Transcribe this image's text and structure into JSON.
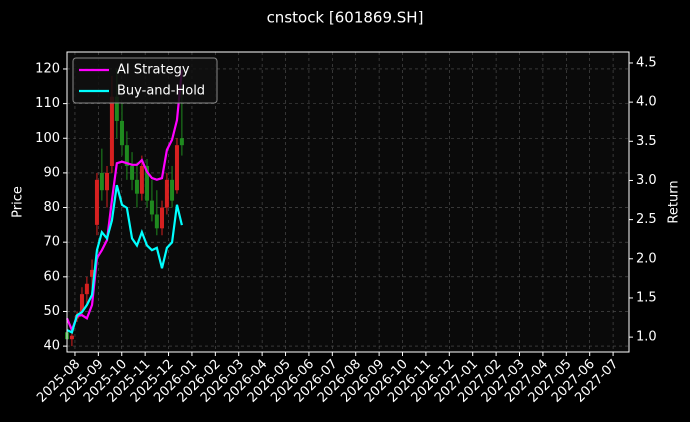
{
  "chart_data": {
    "type": "candlestick",
    "title": "cnstock [601869.SH]",
    "ylabel": "Price",
    "y2label": "Return",
    "x": [
      -0.34,
      -0.13,
      0.09,
      0.3,
      0.51,
      0.73,
      0.94,
      1.15,
      1.37,
      1.58,
      1.79,
      2.01,
      2.22,
      2.44,
      2.65,
      2.86,
      3.08,
      3.29,
      3.5,
      3.72,
      3.93,
      4.15,
      4.36,
      4.57
    ],
    "open": [
      44,
      42,
      48,
      50,
      55,
      60,
      75,
      90,
      85,
      92,
      112,
      105,
      98,
      92,
      88,
      84,
      92,
      82,
      78,
      74,
      80,
      88,
      85,
      100
    ],
    "high": [
      45,
      44,
      50,
      57,
      60,
      65,
      90,
      97,
      92,
      118,
      120,
      110,
      102,
      96,
      93,
      95,
      94,
      88,
      85,
      82,
      90,
      92,
      100,
      115
    ],
    "low": [
      41,
      40,
      47,
      49,
      52,
      56,
      72,
      82,
      80,
      90,
      100,
      95,
      88,
      85,
      80,
      82,
      80,
      76,
      72,
      72,
      78,
      80,
      84,
      95
    ],
    "close": [
      42,
      43,
      49,
      55,
      58,
      62,
      88,
      85,
      90,
      112,
      105,
      98,
      92,
      88,
      84,
      92,
      82,
      78,
      74,
      80,
      88,
      82,
      98,
      98
    ],
    "up_color": "#d62020",
    "down_color": "#1f8a1f",
    "series": [
      {
        "name": "AI Strategy",
        "color": "#ff00ff",
        "axis": "y2",
        "values": [
          1.24,
          1.09,
          1.27,
          1.28,
          1.24,
          1.41,
          2.01,
          2.11,
          2.24,
          2.75,
          3.22,
          3.24,
          3.22,
          3.2,
          3.2,
          3.26,
          3.11,
          3.03,
          3.01,
          3.03,
          3.39,
          3.52,
          3.77,
          4.41
        ]
      },
      {
        "name": "Buy-and-Hold",
        "color": "#00ffff",
        "axis": "y2",
        "values": [
          1.09,
          1.06,
          1.28,
          1.32,
          1.41,
          1.54,
          2.11,
          2.34,
          2.26,
          2.49,
          2.94,
          2.69,
          2.65,
          2.26,
          2.17,
          2.34,
          2.17,
          2.11,
          2.14,
          1.88,
          2.14,
          2.21,
          2.69,
          2.43
        ]
      }
    ],
    "xlim": [
      -0.34,
      23.68
    ],
    "xticks": [
      {
        "value": 0,
        "label": "2025-08"
      },
      {
        "value": 1,
        "label": "2025-09"
      },
      {
        "value": 2,
        "label": "2025-10"
      },
      {
        "value": 3,
        "label": "2025-11"
      },
      {
        "value": 4,
        "label": "2025-12"
      },
      {
        "value": 5,
        "label": "2026-01"
      },
      {
        "value": 6,
        "label": "2026-02"
      },
      {
        "value": 7,
        "label": "2026-03"
      },
      {
        "value": 8,
        "label": "2026-04"
      },
      {
        "value": 9,
        "label": "2026-05"
      },
      {
        "value": 10,
        "label": "2026-06"
      },
      {
        "value": 11,
        "label": "2026-07"
      },
      {
        "value": 12,
        "label": "2026-08"
      },
      {
        "value": 13,
        "label": "2026-09"
      },
      {
        "value": 14,
        "label": "2026-10"
      },
      {
        "value": 15,
        "label": "2026-11"
      },
      {
        "value": 16,
        "label": "2026-12"
      },
      {
        "value": 17,
        "label": "2027-01"
      },
      {
        "value": 18,
        "label": "2027-02"
      },
      {
        "value": 19,
        "label": "2027-03"
      },
      {
        "value": 20,
        "label": "2027-04"
      },
      {
        "value": 21,
        "label": "2027-05"
      },
      {
        "value": 22,
        "label": "2027-06"
      },
      {
        "value": 23,
        "label": "2027-07"
      }
    ],
    "ylim": [
      38.3,
      124.9
    ],
    "yticks": [
      40,
      50,
      60,
      70,
      80,
      90,
      100,
      110,
      120
    ],
    "y2lim": [
      0.81,
      4.64
    ],
    "y2ticks": [
      {
        "value": 1,
        "label": "1.0"
      },
      1.5,
      {
        "value": 2,
        "label": "2.0"
      },
      2.5,
      {
        "value": 3,
        "label": "3.0"
      },
      3.5,
      {
        "value": 4,
        "label": "4.0"
      },
      4.5
    ],
    "grid": true,
    "legend": "upper left"
  }
}
